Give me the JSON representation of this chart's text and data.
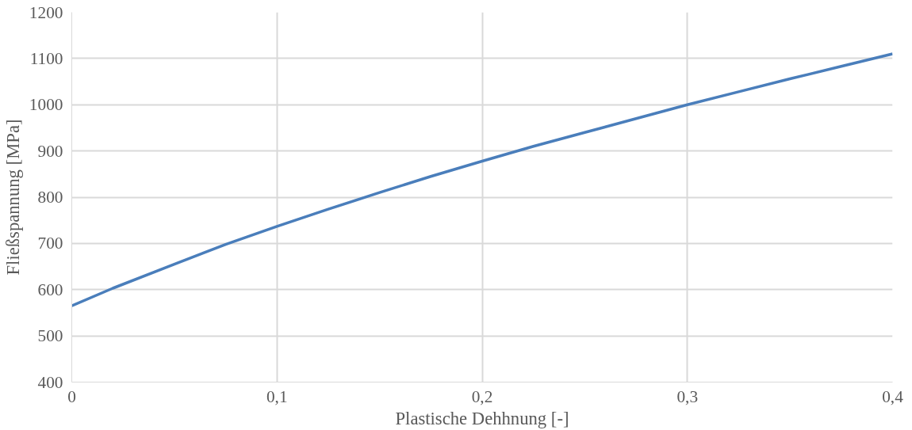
{
  "chart_data": {
    "type": "line",
    "xlabel": "Plastische Dehhnung [-]",
    "ylabel": "Fließspannung [MPa]",
    "x": [
      0,
      0.02,
      0.05,
      0.075,
      0.1,
      0.125,
      0.15,
      0.175,
      0.2,
      0.225,
      0.25,
      0.275,
      0.3,
      0.325,
      0.35,
      0.375,
      0.4
    ],
    "series": [
      {
        "color": "#4a7ebb",
        "values": [
          565,
          603,
          655,
          698,
          737,
          774,
          810,
          845,
          878,
          910,
          940,
          970,
          1000,
          1028,
          1056,
          1083,
          1110
        ]
      }
    ],
    "xlim": [
      0,
      0.4
    ],
    "ylim": [
      400,
      1200
    ],
    "xticks": [
      0,
      {
        "value": 0.1,
        "label": "0,1"
      },
      {
        "value": 0.2,
        "label": "0,2"
      },
      {
        "value": 0.3,
        "label": "0,3"
      },
      {
        "value": 0.4,
        "label": "0,4"
      }
    ],
    "yticks": [
      400,
      500,
      600,
      700,
      800,
      900,
      1000,
      1100,
      1200
    ],
    "grid": true,
    "marker": "none",
    "line_style": "solid"
  }
}
